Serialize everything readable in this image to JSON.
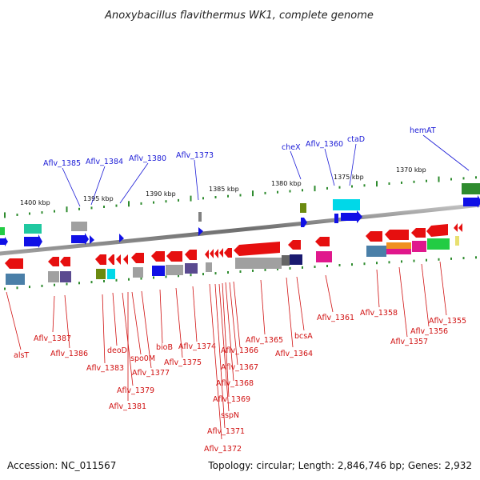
{
  "title": "Anoxybacillus flavithermus WK1, complete genome",
  "footer": {
    "accession": "Accession: NC_011567",
    "topology": "Topology: circular; Length: 2,846,746 bp; Genes: 2,932"
  },
  "kbp_labels": [
    "1400 kbp",
    "1395 kbp",
    "1390 kbp",
    "1385 kbp",
    "1380 kbp",
    "1375 kbp",
    "1370 kbp"
  ],
  "top_labels": [
    "Aflv_1385",
    "Aflv_1384",
    "Aflv_1380",
    "Aflv_1373",
    "cheX",
    "Aflv_1360",
    "ctaD",
    "hemAT"
  ],
  "bottom_labels": [
    "alsT",
    "Aflv_1387",
    "Aflv_1386",
    "Aflv_1383",
    "deoD",
    "Aflv_1379",
    "Aflv_1381",
    "spo0M",
    "Aflv_1377",
    "bioB",
    "Aflv_1375",
    "Aflv_1374",
    "Aflv_1372",
    "Aflv_1371",
    "sspN",
    "Aflv_1369",
    "Aflv_1368",
    "Aflv_1367",
    "Aflv_1366",
    "Aflv_1365",
    "Aflv_1364",
    "bcsA",
    "Aflv_1361",
    "Aflv_1358",
    "Aflv_1357",
    "Aflv_1356",
    "Aflv_1355"
  ],
  "colors": {
    "backbone": "#808080",
    "forward_gene": "#1010e6",
    "reverse_gene": "#e60f0f",
    "tick": "#2e8b2e",
    "top_label": "#1a1ad6",
    "bottom_label": "#d01010",
    "cds_cyan": "#00d8e8",
    "cds_green": "#22cc44",
    "cds_gray": "#a0a0a0",
    "cds_steel": "#4a7fa8",
    "cds_navy": "#1a1a70",
    "cds_magenta": "#e0188c",
    "cds_orange": "#f09020",
    "cds_olive": "#6b8a10",
    "cds_seagreen": "#20c8a0",
    "cds_purple": "#5a4a90"
  }
}
